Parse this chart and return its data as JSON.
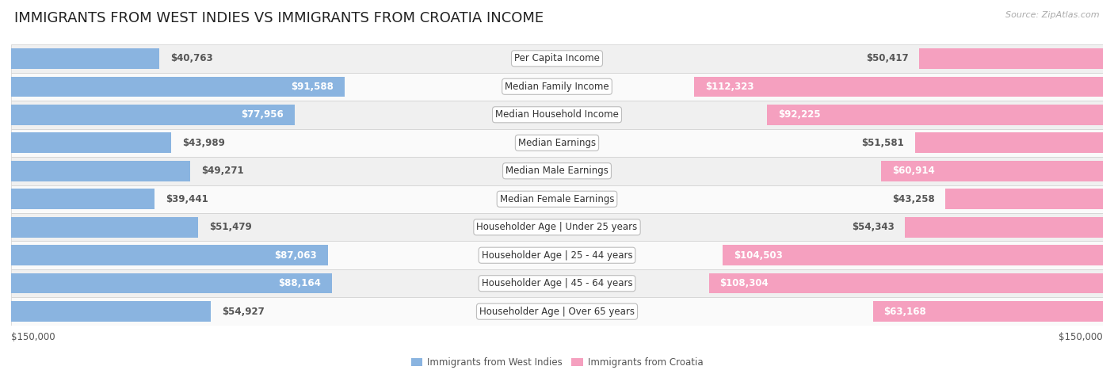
{
  "title": "IMMIGRANTS FROM WEST INDIES VS IMMIGRANTS FROM CROATIA INCOME",
  "source": "Source: ZipAtlas.com",
  "categories": [
    "Per Capita Income",
    "Median Family Income",
    "Median Household Income",
    "Median Earnings",
    "Median Male Earnings",
    "Median Female Earnings",
    "Householder Age | Under 25 years",
    "Householder Age | 25 - 44 years",
    "Householder Age | 45 - 64 years",
    "Householder Age | Over 65 years"
  ],
  "west_indies_values": [
    40763,
    91588,
    77956,
    43989,
    49271,
    39441,
    51479,
    87063,
    88164,
    54927
  ],
  "croatia_values": [
    50417,
    112323,
    92225,
    51581,
    60914,
    43258,
    54343,
    104503,
    108304,
    63168
  ],
  "west_indies_labels": [
    "$40,763",
    "$91,588",
    "$77,956",
    "$43,989",
    "$49,271",
    "$39,441",
    "$51,479",
    "$87,063",
    "$88,164",
    "$54,927"
  ],
  "croatia_labels": [
    "$50,417",
    "$112,323",
    "$92,225",
    "$51,581",
    "$60,914",
    "$43,258",
    "$54,343",
    "$104,503",
    "$108,304",
    "$63,168"
  ],
  "max_value": 150000,
  "west_indies_color": "#8ab4e0",
  "croatia_color": "#f5a0bf",
  "west_indies_color_strong": "#5b8ec4",
  "croatia_color_strong": "#e8608a",
  "row_bg_even": "#f0f0f0",
  "row_bg_odd": "#fafafa",
  "legend_west_indies": "Immigrants from West Indies",
  "legend_croatia": "Immigrants from Croatia",
  "axis_label_left": "$150,000",
  "axis_label_right": "$150,000",
  "title_fontsize": 13,
  "label_fontsize": 8.5,
  "category_fontsize": 8.5,
  "source_fontsize": 8,
  "white_label_threshold": 60000
}
